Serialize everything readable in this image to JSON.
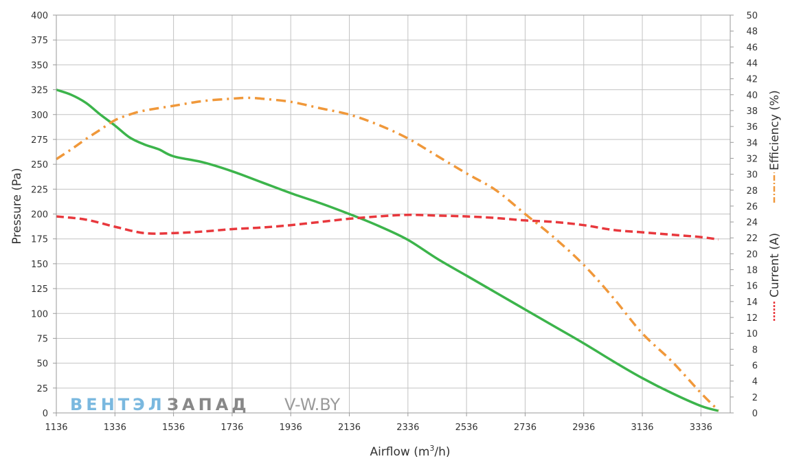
{
  "chart_data": {
    "type": "line",
    "xlabel": "Airflow (m",
    "xlabel_sup": "3",
    "xlabel_tail": "/h)",
    "ylabel": "Pressure (Pa)",
    "y2label_efficiency": "Efficiency (%)",
    "y2label_current": "Current (A)",
    "xlim": [
      1136,
      3436
    ],
    "ylim": [
      0,
      400
    ],
    "y2lim": [
      0,
      50
    ],
    "grid": true,
    "x_ticks": [
      "1136",
      "1336",
      "1536",
      "1736",
      "1936",
      "2136",
      "2336",
      "2536",
      "2736",
      "2936",
      "3136",
      "3336"
    ],
    "y_ticks": [
      "0",
      "25",
      "50",
      "75",
      "100",
      "125",
      "150",
      "175",
      "200",
      "225",
      "250",
      "275",
      "300",
      "325",
      "350",
      "375",
      "400"
    ],
    "y2_ticks": [
      "0",
      "2",
      "4",
      "6",
      "8",
      "10",
      "12",
      "14",
      "16",
      "18",
      "20",
      "22",
      "24",
      "26",
      "28",
      "30",
      "32",
      "34",
      "36",
      "38",
      "40",
      "42",
      "44",
      "46",
      "48",
      "50"
    ],
    "series": [
      {
        "key": "pressure",
        "axis": "left",
        "color": "#3cb44b",
        "style": "solid",
        "x": [
          1136,
          1186,
          1236,
          1286,
          1336,
          1386,
          1436,
          1486,
          1536,
          1636,
          1736,
          1836,
          1936,
          2036,
          2136,
          2236,
          2336,
          2436,
          2536,
          2636,
          2736,
          2836,
          2936,
          3036,
          3136,
          3236,
          3336,
          3396
        ],
        "y": [
          325,
          320,
          312,
          300,
          289,
          277,
          270,
          265,
          258,
          252,
          243,
          232,
          221,
          211,
          200,
          188,
          174,
          155,
          138,
          121,
          104,
          87,
          70,
          52,
          35,
          20,
          7,
          2
        ]
      },
      {
        "key": "efficiency",
        "axis": "right",
        "color": "#f0983a",
        "style": "dash-dot",
        "x": [
          1136,
          1186,
          1236,
          1286,
          1336,
          1386,
          1436,
          1536,
          1636,
          1736,
          1786,
          1836,
          1936,
          2036,
          2136,
          2236,
          2336,
          2436,
          2536,
          2636,
          2736,
          2836,
          2936,
          3036,
          3136,
          3236,
          3336,
          3396
        ],
        "y": [
          31.9,
          33.1,
          34.4,
          35.6,
          36.8,
          37.5,
          38.0,
          38.6,
          39.2,
          39.5,
          39.6,
          39.5,
          39.1,
          38.3,
          37.5,
          36.2,
          34.5,
          32.3,
          30.1,
          28.0,
          25.0,
          22.0,
          18.6,
          14.5,
          10.0,
          6.5,
          2.5,
          0.3
        ]
      },
      {
        "key": "current",
        "axis": "right",
        "color": "#e8383d",
        "style": "dashed",
        "x": [
          1136,
          1236,
          1336,
          1436,
          1536,
          1636,
          1736,
          1836,
          1936,
          2036,
          2136,
          2236,
          2336,
          2436,
          2536,
          2636,
          2736,
          2836,
          2936,
          3036,
          3136,
          3236,
          3336,
          3396
        ],
        "y": [
          24.7,
          24.3,
          23.4,
          22.6,
          22.6,
          22.8,
          23.1,
          23.3,
          23.6,
          24.0,
          24.4,
          24.7,
          24.9,
          24.8,
          24.7,
          24.5,
          24.2,
          24.0,
          23.6,
          23.0,
          22.7,
          22.4,
          22.1,
          21.8
        ]
      }
    ]
  },
  "watermark": {
    "part1": "ВЕНТЭЛ",
    "part2": "ЗАПАД",
    "part3": "V-W.BY",
    "color1": "#7ab8df",
    "color2": "#888888",
    "color3": "#9a9a9a"
  }
}
